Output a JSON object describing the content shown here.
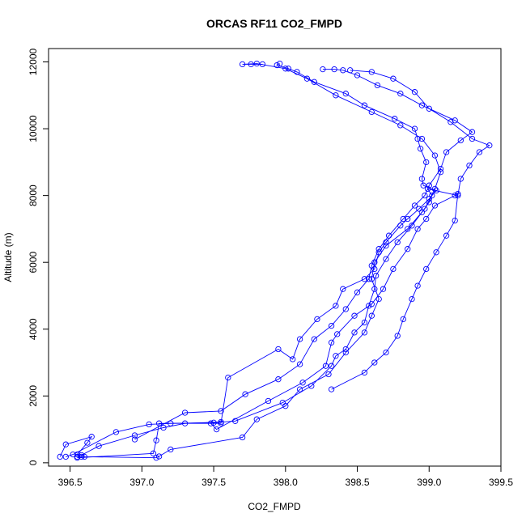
{
  "chart_data": {
    "type": "line",
    "title": "ORCAS RF11 CO2_FMPD",
    "xlabel": "CO2_FMPD",
    "ylabel": "Altitude (m)",
    "xlim": [
      396.35,
      399.5
    ],
    "ylim": [
      -100,
      12400
    ],
    "xticks": [
      396.5,
      397.0,
      397.5,
      398.0,
      398.5,
      399.0,
      399.5
    ],
    "yticks": [
      0,
      2000,
      4000,
      6000,
      8000,
      10000,
      12000
    ],
    "grid": false,
    "color": "#0000ff",
    "marker": "open-circle",
    "series": [
      {
        "points": [
          [
            396.43,
            180
          ],
          [
            396.47,
            550
          ],
          [
            396.65,
            780
          ],
          [
            396.62,
            600
          ],
          [
            396.55,
            250
          ],
          [
            396.6,
            180
          ],
          [
            397.1,
            150
          ],
          [
            397.12,
            190
          ],
          [
            397.2,
            400
          ],
          [
            397.7,
            760
          ],
          [
            397.8,
            1300
          ],
          [
            398.0,
            1700
          ],
          [
            398.1,
            2200
          ],
          [
            398.3,
            2650
          ],
          [
            398.42,
            3300
          ],
          [
            398.55,
            3900
          ],
          [
            398.6,
            4400
          ],
          [
            398.65,
            4900
          ],
          [
            398.6,
            5500
          ],
          [
            398.62,
            6000
          ],
          [
            398.7,
            6500
          ],
          [
            398.85,
            7000
          ],
          [
            398.97,
            7600
          ],
          [
            399.04,
            8200
          ],
          [
            399.08,
            8700
          ],
          [
            399.04,
            9200
          ],
          [
            398.95,
            9700
          ],
          [
            398.8,
            10100
          ],
          [
            398.6,
            10500
          ],
          [
            398.35,
            11000
          ],
          [
            398.15,
            11500
          ],
          [
            398.0,
            11800
          ],
          [
            397.8,
            11950
          ],
          [
            397.7,
            11930
          ],
          [
            397.76,
            11930
          ],
          [
            397.84,
            11930
          ]
        ]
      },
      {
        "points": [
          [
            396.47,
            180
          ],
          [
            396.52,
            250
          ],
          [
            396.82,
            920
          ],
          [
            397.05,
            1150
          ],
          [
            397.2,
            1180
          ],
          [
            397.5,
            1200
          ],
          [
            397.65,
            1250
          ],
          [
            397.98,
            1800
          ],
          [
            398.18,
            2300
          ],
          [
            398.32,
            2900
          ],
          [
            398.35,
            3200
          ],
          [
            398.42,
            3400
          ],
          [
            398.48,
            3900
          ],
          [
            398.55,
            4200
          ],
          [
            398.58,
            4700
          ],
          [
            398.62,
            5200
          ],
          [
            398.63,
            5600
          ],
          [
            398.7,
            6100
          ],
          [
            398.78,
            6600
          ],
          [
            398.88,
            7100
          ],
          [
            398.95,
            7500
          ],
          [
            399.0,
            7800
          ],
          [
            399.02,
            8000
          ],
          [
            398.99,
            8200
          ],
          [
            399.2,
            8000
          ],
          [
            399.22,
            8500
          ],
          [
            399.28,
            8900
          ],
          [
            399.35,
            9300
          ],
          [
            399.42,
            9500
          ],
          [
            399.3,
            9700
          ],
          [
            399.15,
            10200
          ],
          [
            399.0,
            10600
          ],
          [
            398.9,
            11100
          ],
          [
            398.75,
            11500
          ],
          [
            398.6,
            11700
          ],
          [
            398.45,
            11750
          ]
        ]
      },
      {
        "points": [
          [
            396.55,
            180
          ],
          [
            396.58,
            230
          ],
          [
            396.7,
            500
          ],
          [
            396.95,
            820
          ],
          [
            397.15,
            1050
          ],
          [
            397.3,
            1180
          ],
          [
            397.55,
            1220
          ],
          [
            397.48,
            1180
          ],
          [
            397.52,
            1000
          ],
          [
            397.88,
            1850
          ],
          [
            398.12,
            2400
          ],
          [
            398.28,
            2900
          ],
          [
            398.32,
            3600
          ],
          [
            398.36,
            3850
          ],
          [
            398.48,
            4400
          ],
          [
            398.6,
            4750
          ],
          [
            398.68,
            5200
          ],
          [
            398.75,
            5800
          ],
          [
            398.85,
            6400
          ],
          [
            398.92,
            7000
          ],
          [
            398.98,
            7300
          ],
          [
            399.04,
            7700
          ],
          [
            399.18,
            8000
          ],
          [
            399.2,
            8050
          ],
          [
            399.18,
            7250
          ],
          [
            399.12,
            6800
          ],
          [
            399.05,
            6300
          ],
          [
            398.98,
            5800
          ],
          [
            398.92,
            5300
          ],
          [
            398.88,
            4900
          ],
          [
            398.82,
            4300
          ],
          [
            398.78,
            3800
          ],
          [
            398.7,
            3300
          ],
          [
            398.62,
            3000
          ],
          [
            398.55,
            2700
          ],
          [
            398.32,
            2200
          ]
        ]
      },
      {
        "points": [
          [
            396.58,
            180
          ],
          [
            396.55,
            150
          ],
          [
            397.08,
            280
          ],
          [
            397.1,
            670
          ],
          [
            397.12,
            1180
          ],
          [
            397.55,
            1180
          ],
          [
            397.6,
            2550
          ],
          [
            397.95,
            3400
          ],
          [
            398.05,
            3100
          ],
          [
            398.1,
            3700
          ],
          [
            398.22,
            4300
          ],
          [
            398.35,
            4700
          ],
          [
            398.4,
            5200
          ],
          [
            398.55,
            5500
          ],
          [
            398.62,
            5800
          ],
          [
            398.65,
            6300
          ],
          [
            398.7,
            6600
          ],
          [
            398.8,
            7100
          ],
          [
            398.85,
            7300
          ],
          [
            398.93,
            7600
          ],
          [
            399.0,
            7900
          ],
          [
            399.05,
            8150
          ],
          [
            398.96,
            8300
          ],
          [
            398.95,
            8500
          ],
          [
            398.98,
            9000
          ],
          [
            398.94,
            9400
          ],
          [
            398.92,
            9700
          ],
          [
            398.9,
            10000
          ],
          [
            398.76,
            10300
          ],
          [
            398.55,
            10700
          ],
          [
            398.42,
            11050
          ],
          [
            398.2,
            11400
          ],
          [
            398.08,
            11700
          ],
          [
            398.02,
            11800
          ],
          [
            397.94,
            11900
          ],
          [
            397.96,
            11950
          ]
        ]
      },
      {
        "points": [
          [
            396.95,
            700
          ],
          [
            397.3,
            1500
          ],
          [
            397.55,
            1550
          ],
          [
            397.72,
            2050
          ],
          [
            397.95,
            2500
          ],
          [
            398.1,
            2950
          ],
          [
            398.2,
            3700
          ],
          [
            398.32,
            4100
          ],
          [
            398.42,
            4600
          ],
          [
            398.5,
            5100
          ],
          [
            398.58,
            5500
          ],
          [
            398.6,
            5900
          ],
          [
            398.65,
            6400
          ],
          [
            398.72,
            6800
          ],
          [
            398.82,
            7300
          ],
          [
            398.9,
            7700
          ],
          [
            398.97,
            8000
          ],
          [
            399.0,
            8300
          ],
          [
            399.08,
            8800
          ],
          [
            399.12,
            9300
          ],
          [
            399.22,
            9650
          ],
          [
            399.3,
            9900
          ],
          [
            399.18,
            10250
          ],
          [
            398.95,
            10700
          ],
          [
            398.8,
            11050
          ],
          [
            398.64,
            11300
          ],
          [
            398.5,
            11600
          ],
          [
            398.4,
            11750
          ],
          [
            398.34,
            11780
          ],
          [
            398.26,
            11780
          ]
        ]
      }
    ]
  }
}
